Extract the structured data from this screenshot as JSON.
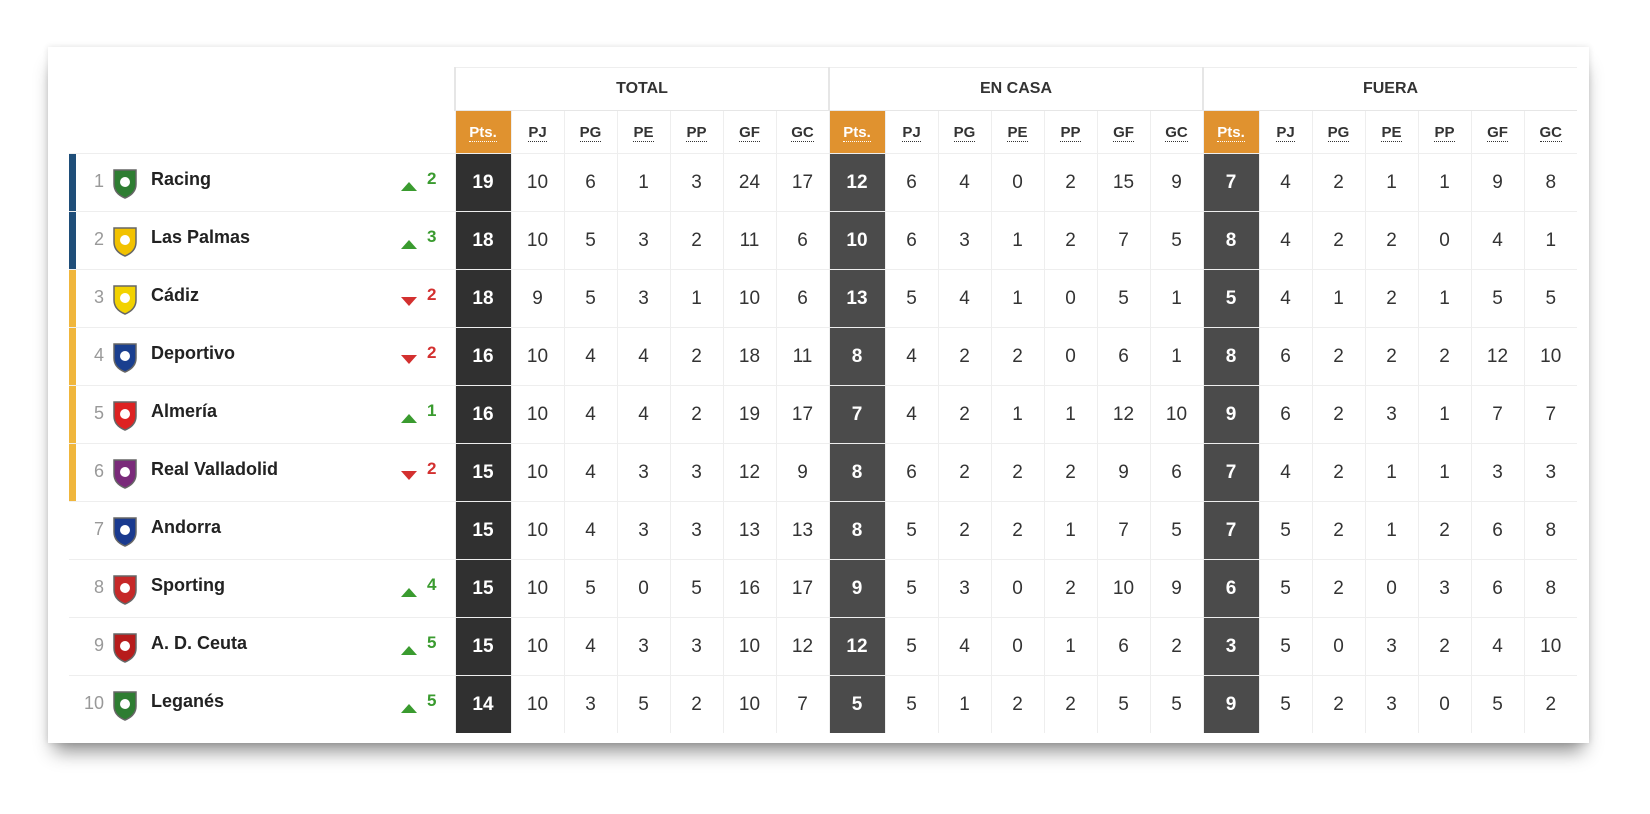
{
  "groups": [
    "TOTAL",
    "EN CASA",
    "FUERA"
  ],
  "columns": [
    "Pts.",
    "PJ",
    "PG",
    "PE",
    "PP",
    "GF",
    "GC"
  ],
  "rows": [
    {
      "position": 1,
      "team": "Racing",
      "trend": "up",
      "change": 2,
      "zone_color": "#1f4e79",
      "total": [
        19,
        10,
        6,
        1,
        3,
        24,
        17
      ],
      "home": [
        12,
        6,
        4,
        0,
        2,
        15,
        9
      ],
      "away": [
        7,
        4,
        2,
        1,
        1,
        9,
        8
      ]
    },
    {
      "position": 2,
      "team": "Las Palmas",
      "trend": "up",
      "change": 3,
      "zone_color": "#1f4e79",
      "total": [
        18,
        10,
        5,
        3,
        2,
        11,
        6
      ],
      "home": [
        10,
        6,
        3,
        1,
        2,
        7,
        5
      ],
      "away": [
        8,
        4,
        2,
        2,
        0,
        4,
        1
      ]
    },
    {
      "position": 3,
      "team": "Cádiz",
      "trend": "down",
      "change": 2,
      "zone_color": "#f0b63c",
      "total": [
        18,
        9,
        5,
        3,
        1,
        10,
        6
      ],
      "home": [
        13,
        5,
        4,
        1,
        0,
        5,
        1
      ],
      "away": [
        5,
        4,
        1,
        2,
        1,
        5,
        5
      ]
    },
    {
      "position": 4,
      "team": "Deportivo",
      "trend": "down",
      "change": 2,
      "zone_color": "#f0b63c",
      "total": [
        16,
        10,
        4,
        4,
        2,
        18,
        11
      ],
      "home": [
        8,
        4,
        2,
        2,
        0,
        6,
        1
      ],
      "away": [
        8,
        6,
        2,
        2,
        2,
        12,
        10
      ]
    },
    {
      "position": 5,
      "team": "Almería",
      "trend": "up",
      "change": 1,
      "zone_color": "#f0b63c",
      "total": [
        16,
        10,
        4,
        4,
        2,
        19,
        17
      ],
      "home": [
        7,
        4,
        2,
        1,
        1,
        12,
        10
      ],
      "away": [
        9,
        6,
        2,
        3,
        1,
        7,
        7
      ]
    },
    {
      "position": 6,
      "team": "Real Valladolid",
      "trend": "down",
      "change": 2,
      "zone_color": "#f0b63c",
      "total": [
        15,
        10,
        4,
        3,
        3,
        12,
        9
      ],
      "home": [
        8,
        6,
        2,
        2,
        2,
        9,
        6
      ],
      "away": [
        7,
        4,
        2,
        1,
        1,
        3,
        3
      ]
    },
    {
      "position": 7,
      "team": "Andorra",
      "trend": null,
      "change": null,
      "zone_color": null,
      "total": [
        15,
        10,
        4,
        3,
        3,
        13,
        13
      ],
      "home": [
        8,
        5,
        2,
        2,
        1,
        7,
        5
      ],
      "away": [
        7,
        5,
        2,
        1,
        2,
        6,
        8
      ]
    },
    {
      "position": 8,
      "team": "Sporting",
      "trend": "up",
      "change": 4,
      "zone_color": null,
      "total": [
        15,
        10,
        5,
        0,
        5,
        16,
        17
      ],
      "home": [
        9,
        5,
        3,
        0,
        2,
        10,
        9
      ],
      "away": [
        6,
        5,
        2,
        0,
        3,
        6,
        8
      ]
    },
    {
      "position": 9,
      "team": "A. D. Ceuta",
      "trend": "up",
      "change": 5,
      "zone_color": null,
      "total": [
        15,
        10,
        4,
        3,
        3,
        10,
        12
      ],
      "home": [
        12,
        5,
        4,
        0,
        1,
        6,
        2
      ],
      "away": [
        3,
        5,
        0,
        3,
        2,
        4,
        10
      ]
    },
    {
      "position": 10,
      "team": "Leganés",
      "trend": "up",
      "change": 5,
      "zone_color": null,
      "total": [
        14,
        10,
        3,
        5,
        2,
        10,
        7
      ],
      "home": [
        5,
        5,
        1,
        2,
        2,
        5,
        5
      ],
      "away": [
        9,
        5,
        2,
        3,
        0,
        5,
        2
      ]
    }
  ]
}
